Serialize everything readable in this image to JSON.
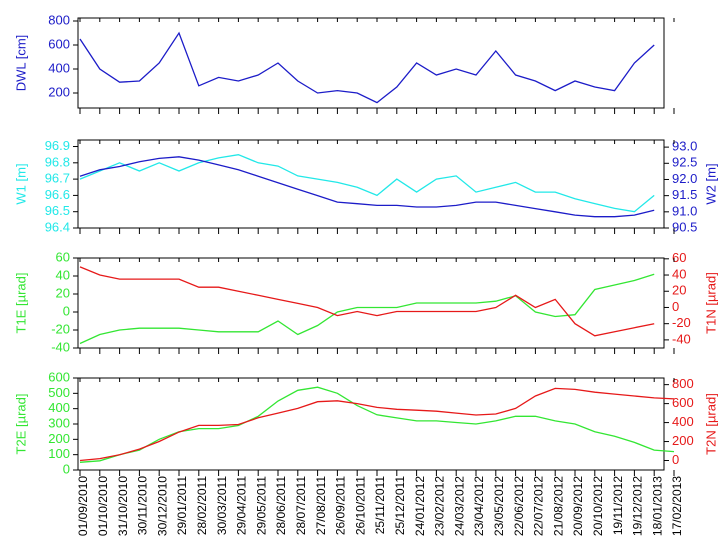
{
  "chart_data": [
    {
      "type": "line",
      "ylabel": "DWL [cm]",
      "ylim": [
        75,
        825
      ],
      "yticks": [
        200,
        400,
        600,
        800
      ],
      "series": [
        {
          "color": "#1c1cc8",
          "axis": "y",
          "values": [
            650,
            400,
            290,
            300,
            450,
            700,
            260,
            330,
            300,
            350,
            450,
            300,
            200,
            220,
            200,
            120,
            250,
            450,
            350,
            400,
            350,
            550,
            350,
            300,
            220,
            300,
            250,
            220,
            450,
            600
          ]
        }
      ]
    },
    {
      "type": "line",
      "ylabel": "W1 [m]",
      "y2label": "W2 [m]",
      "ylim": [
        96.4,
        96.94
      ],
      "yticks": [
        96.4,
        96.5,
        96.6,
        96.7,
        96.8,
        96.9
      ],
      "y2lim": [
        90.5,
        93.22
      ],
      "y2ticks": [
        {
          "value": 90.5,
          "label": "90.5"
        },
        {
          "value": 91,
          "label": "91.0"
        },
        {
          "value": 91.5,
          "label": "91.5"
        },
        {
          "value": 92,
          "label": "92.0"
        },
        {
          "value": 92.5,
          "label": "92.5"
        },
        {
          "value": 93,
          "label": "93.0"
        }
      ],
      "series": [
        {
          "color": "#22e8e8",
          "axis": "y",
          "values": [
            96.7,
            96.75,
            96.8,
            96.75,
            96.8,
            96.75,
            96.8,
            96.83,
            96.85,
            96.8,
            96.78,
            96.72,
            96.7,
            96.68,
            96.65,
            96.6,
            96.7,
            96.62,
            96.7,
            96.72,
            96.62,
            96.65,
            96.68,
            96.62,
            96.62,
            96.58,
            96.55,
            96.52,
            96.5,
            96.6
          ]
        },
        {
          "color": "#1c1cc8",
          "axis": "y2",
          "values": [
            92.1,
            92.3,
            92.4,
            92.55,
            92.65,
            92.7,
            92.6,
            92.45,
            92.3,
            92.1,
            91.9,
            91.7,
            91.5,
            91.3,
            91.25,
            91.2,
            91.2,
            91.15,
            91.15,
            91.2,
            91.3,
            91.3,
            91.2,
            91.1,
            91.0,
            90.9,
            90.85,
            90.85,
            90.9,
            91.05
          ]
        }
      ]
    },
    {
      "type": "line",
      "ylabel": "T1E [µrad]",
      "y2label": "T1N [µrad]",
      "ylim": [
        -40,
        60
      ],
      "yticks": [
        -40,
        -20,
        0,
        20,
        40,
        60
      ],
      "y2lim": [
        -50,
        61
      ],
      "y2ticks": [
        -40,
        -20,
        0,
        20,
        40,
        60
      ],
      "series": [
        {
          "color": "#33e633",
          "axis": "y",
          "values": [
            -35,
            -25,
            -20,
            -18,
            -18,
            -18,
            -20,
            -22,
            -22,
            -22,
            -10,
            -25,
            -15,
            0,
            5,
            5,
            5,
            10,
            10,
            10,
            10,
            12,
            18,
            0,
            -5,
            -3,
            25,
            30,
            35,
            42
          ]
        },
        {
          "color": "#e61919",
          "axis": "y2",
          "values": [
            50,
            40,
            35,
            35,
            35,
            35,
            25,
            25,
            20,
            15,
            10,
            5,
            0,
            -10,
            -5,
            -10,
            -5,
            -5,
            -5,
            -5,
            -5,
            0,
            15,
            0,
            10,
            -20,
            -35,
            -30,
            -25,
            -20
          ]
        }
      ]
    },
    {
      "type": "line",
      "ylabel": "T2E [µrad]",
      "y2label": "T2N [µrad]",
      "ylim": [
        0,
        600
      ],
      "yticks": [
        0,
        100,
        200,
        300,
        400,
        500,
        600
      ],
      "y2lim": [
        -100,
        870
      ],
      "y2ticks": [
        0,
        200,
        400,
        600,
        800
      ],
      "categories": [
        "01/09/2010",
        "01/10/2010",
        "31/10/2010",
        "30/11/2010",
        "30/12/2010",
        "29/01/2011",
        "28/02/2011",
        "30/03/2011",
        "29/04/2011",
        "29/05/2011",
        "28/06/2011",
        "28/07/2011",
        "27/08/2011",
        "26/09/2011",
        "26/10/2011",
        "25/11/2011",
        "25/12/2011",
        "24/01/2012",
        "23/02/2012",
        "24/03/2012",
        "23/04/2012",
        "23/05/2012",
        "22/06/2012",
        "22/07/2012",
        "21/08/2012",
        "20/09/2012",
        "20/10/2012",
        "19/11/2012",
        "19/12/2012",
        "18/01/2013",
        "17/02/2013"
      ],
      "series": [
        {
          "color": "#33e633",
          "axis": "y",
          "values": [
            50,
            60,
            100,
            130,
            200,
            250,
            270,
            270,
            290,
            350,
            450,
            520,
            540,
            500,
            420,
            360,
            340,
            320,
            320,
            310,
            300,
            320,
            350,
            350,
            320,
            300,
            250,
            220,
            180,
            130,
            120
          ]
        },
        {
          "color": "#e61919",
          "axis": "y2",
          "values": [
            0,
            20,
            60,
            120,
            200,
            300,
            370,
            370,
            380,
            450,
            500,
            550,
            620,
            630,
            600,
            560,
            540,
            530,
            520,
            500,
            480,
            490,
            550,
            680,
            760,
            750,
            720,
            700,
            680,
            660,
            650
          ]
        }
      ]
    }
  ]
}
